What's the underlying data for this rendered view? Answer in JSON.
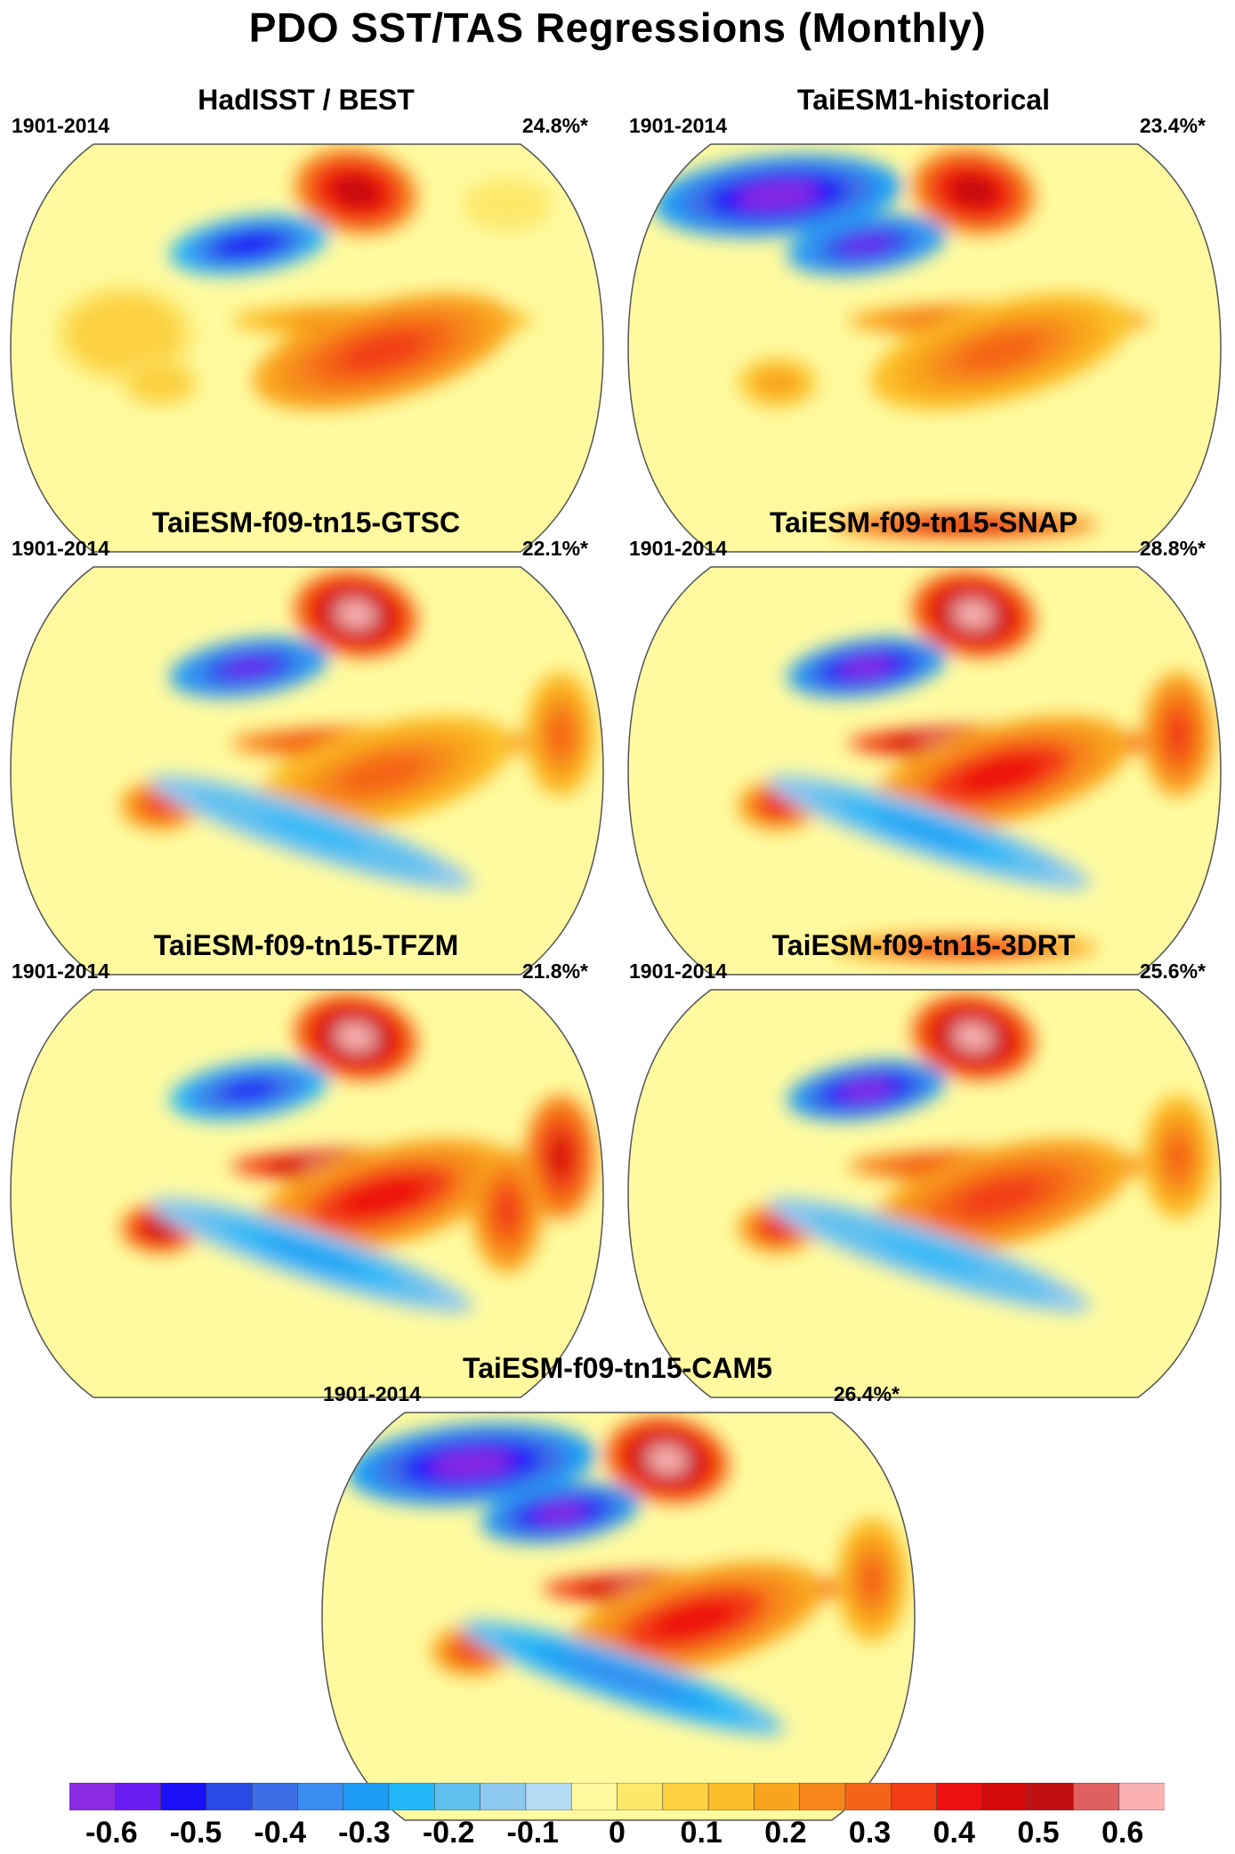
{
  "title": "PDO SST/TAS Regressions (Monthly)",
  "panels": [
    {
      "name": "HadISST / BEST",
      "period": "1901-2014",
      "variance": "24.8%*",
      "blobs": [
        [
          "cx_np",
          -0.52
        ],
        [
          "ak",
          0.5
        ],
        [
          "tp",
          0.3
        ],
        [
          "ep",
          0.35
        ],
        [
          "io",
          0.1
        ],
        [
          "aus",
          0.1
        ],
        [
          "gl",
          0.0
        ]
      ]
    },
    {
      "name": "TaiESM1-historical",
      "period": "1901-2014",
      "variance": "23.4%*",
      "blobs": [
        [
          "cx_np",
          -0.55
        ],
        [
          "sib",
          -0.6
        ],
        [
          "ak",
          0.5
        ],
        [
          "tp",
          0.35
        ],
        [
          "ep",
          0.3
        ],
        [
          "aus",
          0.2
        ],
        [
          "ant",
          0.45
        ]
      ]
    },
    {
      "name": "TaiESM-f09-tn15-GTSC",
      "period": "1901-2014",
      "variance": "22.1%*",
      "blobs": [
        [
          "cx_np",
          -0.55
        ],
        [
          "ak",
          0.6
        ],
        [
          "tp",
          0.45
        ],
        [
          "ep",
          0.3
        ],
        [
          "aus",
          0.35
        ],
        [
          "sp",
          -0.25
        ],
        [
          "afr",
          0.3
        ]
      ]
    },
    {
      "name": "TaiESM-f09-tn15-SNAP",
      "period": "1901-2014",
      "variance": "28.8%*",
      "blobs": [
        [
          "cx_np",
          -0.6
        ],
        [
          "ak",
          0.6
        ],
        [
          "tp",
          0.65
        ],
        [
          "ep",
          0.4
        ],
        [
          "aus",
          0.4
        ],
        [
          "sp",
          -0.3
        ],
        [
          "afr",
          0.35
        ],
        [
          "ant",
          0.4
        ]
      ]
    },
    {
      "name": "TaiESM-f09-tn15-TFZM",
      "period": "1901-2014",
      "variance": "21.8%*",
      "blobs": [
        [
          "cx_np",
          -0.5
        ],
        [
          "ak",
          0.6
        ],
        [
          "tp",
          0.65
        ],
        [
          "ep",
          0.4
        ],
        [
          "aus",
          0.5
        ],
        [
          "sp",
          -0.3
        ],
        [
          "afr",
          0.45
        ],
        [
          "sam",
          0.35
        ]
      ]
    },
    {
      "name": "TaiESM-f09-tn15-3DRT",
      "period": "1901-2014",
      "variance": "25.6%*",
      "blobs": [
        [
          "cx_np",
          -0.6
        ],
        [
          "ak",
          0.6
        ],
        [
          "tp",
          0.45
        ],
        [
          "ep",
          0.35
        ],
        [
          "aus",
          0.4
        ],
        [
          "sp",
          -0.25
        ],
        [
          "afr",
          0.3
        ]
      ]
    },
    {
      "name": "TaiESM-f09-tn15-CAM5",
      "period": "1901-2014",
      "variance": "26.4%*",
      "blobs": [
        [
          "cx_np",
          -0.6
        ],
        [
          "sib",
          -0.6
        ],
        [
          "ak",
          0.6
        ],
        [
          "tp",
          0.65
        ],
        [
          "ep",
          0.4
        ],
        [
          "aus",
          0.35
        ],
        [
          "sp",
          -0.35
        ],
        [
          "afr",
          0.3
        ]
      ]
    }
  ],
  "colorbar": {
    "colors": [
      "#8a2be2",
      "#6a1cf0",
      "#1a10f8",
      "#2a4ae8",
      "#3c6de6",
      "#3a8cf0",
      "#1e9cf5",
      "#22b8f8",
      "#5fc0f0",
      "#8cc8f0",
      "#b4dcf4",
      "#fffaa0",
      "#fde86a",
      "#fcd040",
      "#fbbe28",
      "#f9a41e",
      "#f7861a",
      "#f46418",
      "#f23c14",
      "#ee1010",
      "#d40a0a",
      "#c01010",
      "#e06060",
      "#f8b0b0"
    ],
    "labels": [
      "-0.6",
      "-0.5",
      "-0.4",
      "-0.3",
      "-0.2",
      "-0.1",
      "0",
      "0.1",
      "0.2",
      "0.3",
      "0.4",
      "0.5",
      "0.6"
    ],
    "label_values": [
      -0.6,
      -0.5,
      -0.4,
      -0.3,
      -0.2,
      -0.1,
      0,
      0.1,
      0.2,
      0.3,
      0.4,
      0.5,
      0.6
    ],
    "range": [
      -0.65,
      0.65
    ]
  }
}
